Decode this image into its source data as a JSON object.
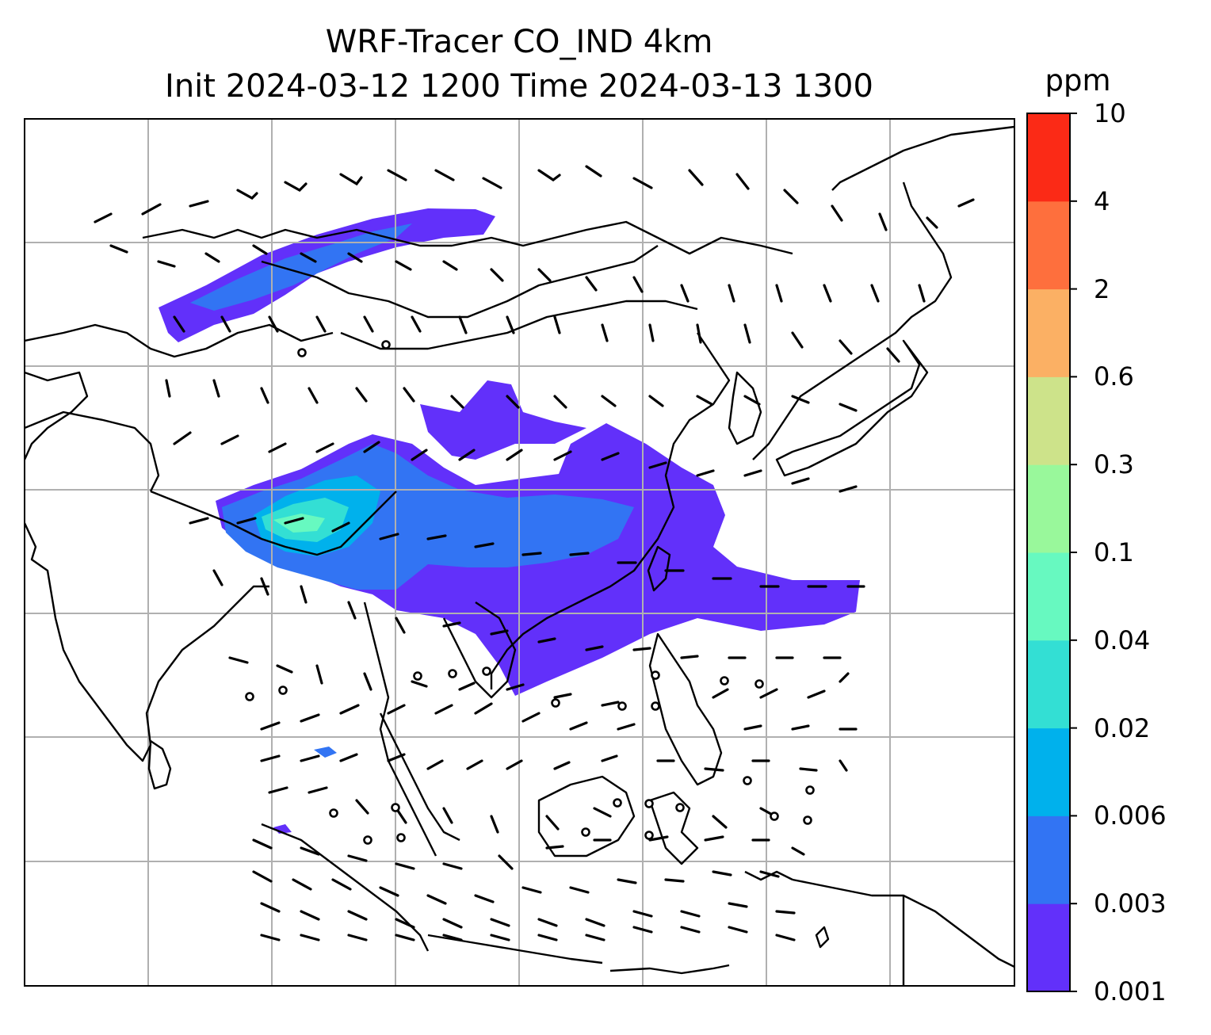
{
  "title": {
    "line1": "WRF-Tracer CO_IND 4km",
    "line2": "Init 2024-03-12 1200 Time 2024-03-13 1300"
  },
  "colorbar": {
    "unit": "ppm",
    "levels": [
      "0.001",
      "0.003",
      "0.006",
      "0.02",
      "0.04",
      "0.1",
      "0.3",
      "0.6",
      "2",
      "4",
      "10"
    ],
    "colors": [
      "#6230fa",
      "#3274f3",
      "#00b1ec",
      "#33dfd4",
      "#67f9c0",
      "#99f89b",
      "#cde38a",
      "#fbb064",
      "#fe6f3d",
      "#fb2a16"
    ]
  },
  "map": {
    "coastline_color": "#000000",
    "gridline_color": "#b0b0b0",
    "wind_barb_color": "#000000",
    "tracer_layers": [
      "0.001-0.003",
      "0.003-0.006",
      "0.006-0.02",
      "0.02-0.04",
      "0.04-0.1"
    ]
  }
}
